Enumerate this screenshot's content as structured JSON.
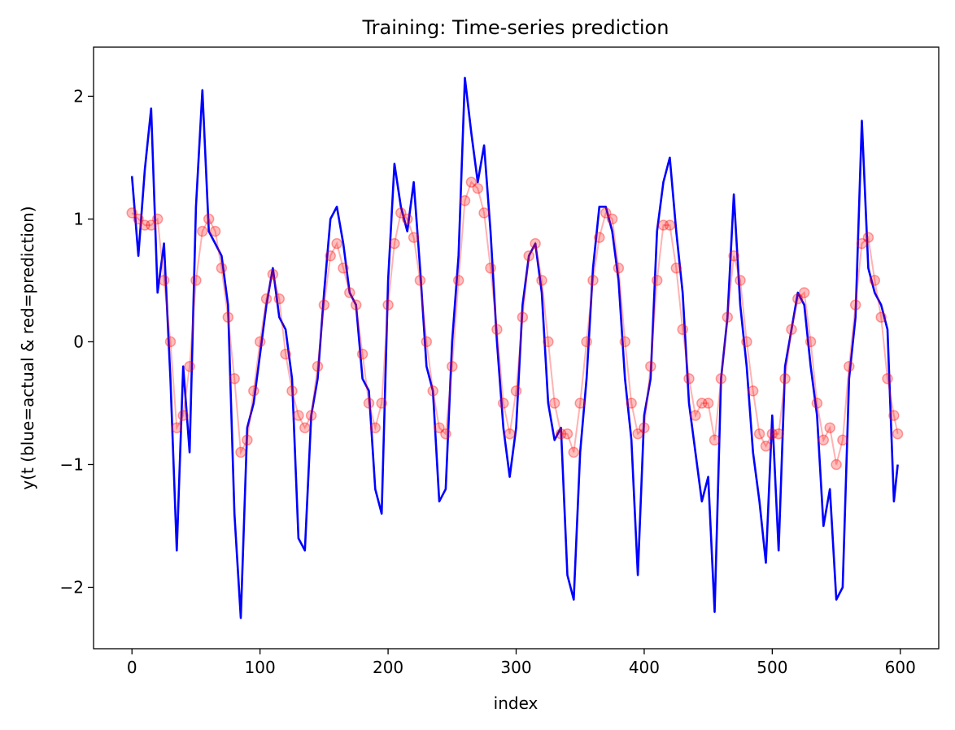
{
  "chart_data": {
    "type": "line",
    "title": "Training: Time-series prediction",
    "xlabel": "index",
    "ylabel": "y(t (blue=actual & red=prediction)",
    "xlim": [
      -30,
      630
    ],
    "ylim": [
      -2.5,
      2.4
    ],
    "xticks": [
      0,
      100,
      200,
      300,
      400,
      500,
      600
    ],
    "xtick_labels": [
      "0",
      "100",
      "200",
      "300",
      "400",
      "500",
      "600"
    ],
    "yticks": [
      -2,
      -1,
      0,
      1,
      2
    ],
    "ytick_labels": [
      "−2",
      "−1",
      "0",
      "1",
      "2"
    ],
    "grid": false,
    "series": [
      {
        "style": "line",
        "color": "#0000ff",
        "x": [
          0,
          5,
          10,
          15,
          20,
          25,
          30,
          35,
          40,
          45,
          50,
          55,
          60,
          65,
          70,
          75,
          80,
          85,
          90,
          95,
          100,
          105,
          110,
          115,
          120,
          125,
          130,
          135,
          140,
          145,
          150,
          155,
          160,
          165,
          170,
          175,
          180,
          185,
          190,
          195,
          200,
          205,
          210,
          215,
          220,
          225,
          230,
          235,
          240,
          245,
          250,
          255,
          260,
          265,
          270,
          275,
          280,
          285,
          290,
          295,
          300,
          305,
          310,
          315,
          320,
          325,
          330,
          335,
          340,
          345,
          350,
          355,
          360,
          365,
          370,
          375,
          380,
          385,
          390,
          395,
          400,
          405,
          410,
          415,
          420,
          425,
          430,
          435,
          440,
          445,
          450,
          455,
          460,
          465,
          470,
          475,
          480,
          485,
          490,
          495,
          500,
          505,
          510,
          515,
          520,
          525,
          530,
          535,
          540,
          545,
          550,
          555,
          560,
          565,
          570,
          575,
          580,
          585,
          590,
          595,
          598
        ],
        "y": [
          1.35,
          0.7,
          1.4,
          1.9,
          0.4,
          0.8,
          -0.3,
          -1.7,
          -0.2,
          -0.9,
          1.1,
          2.05,
          0.9,
          0.8,
          0.7,
          0.3,
          -1.4,
          -2.25,
          -0.7,
          -0.5,
          -0.1,
          0.3,
          0.6,
          0.2,
          0.1,
          -0.3,
          -1.6,
          -1.7,
          -0.6,
          -0.3,
          0.4,
          1.0,
          1.1,
          0.8,
          0.4,
          0.3,
          -0.3,
          -0.4,
          -1.2,
          -1.4,
          0.5,
          1.45,
          1.1,
          0.9,
          1.3,
          0.6,
          -0.2,
          -0.4,
          -1.3,
          -1.2,
          0.0,
          0.7,
          2.15,
          1.7,
          1.3,
          1.6,
          0.9,
          0.0,
          -0.7,
          -1.1,
          -0.7,
          0.3,
          0.7,
          0.8,
          0.4,
          -0.5,
          -0.8,
          -0.7,
          -1.9,
          -2.1,
          -0.9,
          -0.3,
          0.6,
          1.1,
          1.1,
          0.9,
          0.5,
          -0.3,
          -0.8,
          -1.9,
          -0.6,
          -0.3,
          0.9,
          1.3,
          1.5,
          0.9,
          0.4,
          -0.5,
          -0.9,
          -1.3,
          -1.1,
          -2.2,
          -0.3,
          0.2,
          1.2,
          0.3,
          -0.2,
          -0.9,
          -1.3,
          -1.8,
          -0.6,
          -1.7,
          -0.2,
          0.1,
          0.4,
          0.3,
          -0.2,
          -0.6,
          -1.5,
          -1.2,
          -2.1,
          -2.0,
          -0.3,
          0.2,
          1.8,
          0.6,
          0.4,
          0.3,
          0.1,
          -1.3,
          -1.0
        ]
      },
      {
        "style": "markers",
        "color": "#ff0000",
        "x": [
          0,
          5,
          10,
          15,
          20,
          25,
          30,
          35,
          40,
          45,
          50,
          55,
          60,
          65,
          70,
          75,
          80,
          85,
          90,
          95,
          100,
          105,
          110,
          115,
          120,
          125,
          130,
          135,
          140,
          145,
          150,
          155,
          160,
          165,
          170,
          175,
          180,
          185,
          190,
          195,
          200,
          205,
          210,
          215,
          220,
          225,
          230,
          235,
          240,
          245,
          250,
          255,
          260,
          265,
          270,
          275,
          280,
          285,
          290,
          295,
          300,
          305,
          310,
          315,
          320,
          325,
          330,
          335,
          340,
          345,
          350,
          355,
          360,
          365,
          370,
          375,
          380,
          385,
          390,
          395,
          400,
          405,
          410,
          415,
          420,
          425,
          430,
          435,
          440,
          445,
          450,
          455,
          460,
          465,
          470,
          475,
          480,
          485,
          490,
          495,
          500,
          505,
          510,
          515,
          520,
          525,
          530,
          535,
          540,
          545,
          550,
          555,
          560,
          565,
          570,
          575,
          580,
          585,
          590,
          595,
          598
        ],
        "y": [
          1.05,
          1.0,
          0.95,
          0.95,
          1.0,
          0.5,
          0.0,
          -0.7,
          -0.6,
          -0.2,
          0.5,
          0.9,
          1.0,
          0.9,
          0.6,
          0.2,
          -0.3,
          -0.9,
          -0.8,
          -0.4,
          0.0,
          0.35,
          0.55,
          0.35,
          -0.1,
          -0.4,
          -0.6,
          -0.7,
          -0.6,
          -0.2,
          0.3,
          0.7,
          0.8,
          0.6,
          0.4,
          0.3,
          -0.1,
          -0.5,
          -0.7,
          -0.5,
          0.3,
          0.8,
          1.05,
          1.0,
          0.85,
          0.5,
          0.0,
          -0.4,
          -0.7,
          -0.75,
          -0.2,
          0.5,
          1.15,
          1.3,
          1.25,
          1.05,
          0.6,
          0.1,
          -0.5,
          -0.75,
          -0.4,
          0.2,
          0.7,
          0.8,
          0.5,
          0.0,
          -0.5,
          -0.75,
          -0.75,
          -0.9,
          -0.5,
          0.0,
          0.5,
          0.85,
          1.05,
          1.0,
          0.6,
          0.0,
          -0.5,
          -0.75,
          -0.7,
          -0.2,
          0.5,
          0.95,
          0.95,
          0.6,
          0.1,
          -0.3,
          -0.6,
          -0.5,
          -0.5,
          -0.8,
          -0.3,
          0.2,
          0.7,
          0.5,
          0.0,
          -0.4,
          -0.75,
          -0.85,
          -0.75,
          -0.75,
          -0.3,
          0.1,
          0.35,
          0.4,
          0.0,
          -0.5,
          -0.8,
          -0.7,
          -1.0,
          -0.8,
          -0.2,
          0.3,
          0.8,
          0.85,
          0.5,
          0.2,
          -0.3,
          -0.6,
          -0.75
        ]
      }
    ]
  }
}
